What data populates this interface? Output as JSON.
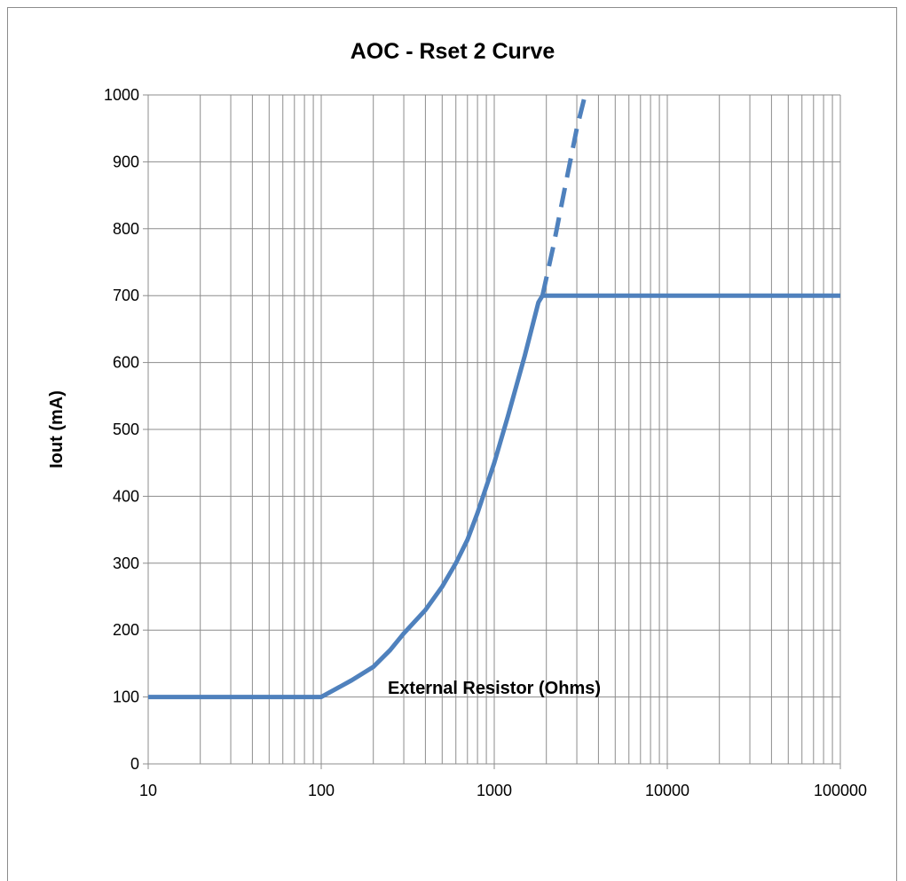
{
  "chart_data": {
    "type": "line",
    "title": "AOC - Rset 2 Curve",
    "xlabel": "External Resistor (Ohms)",
    "ylabel": "Iout (mA)",
    "x_scale": "log",
    "xlim": [
      10,
      100000
    ],
    "ylim": [
      0,
      1000
    ],
    "x_ticks": [
      "10",
      "100",
      "1000",
      "10000",
      "100000"
    ],
    "y_ticks": [
      "0",
      "100",
      "200",
      "300",
      "400",
      "500",
      "600",
      "700",
      "800",
      "900",
      "1000"
    ],
    "grid": true,
    "legend": "none",
    "series": [
      {
        "style": "solid",
        "color": "#4F81BD",
        "x": [
          10,
          100,
          150,
          200,
          250,
          300,
          400,
          500,
          600,
          700,
          800,
          1000,
          1200,
          1500,
          1800,
          1900,
          100000
        ],
        "y": [
          100,
          100,
          125,
          145,
          170,
          195,
          230,
          265,
          300,
          335,
          375,
          450,
          520,
          610,
          690,
          700,
          700
        ]
      },
      {
        "style": "dashed",
        "color": "#4F81BD",
        "x": [
          1900,
          2200,
          2600,
          3000,
          3350
        ],
        "y": [
          700,
          775,
          870,
          950,
          1000
        ]
      }
    ]
  }
}
